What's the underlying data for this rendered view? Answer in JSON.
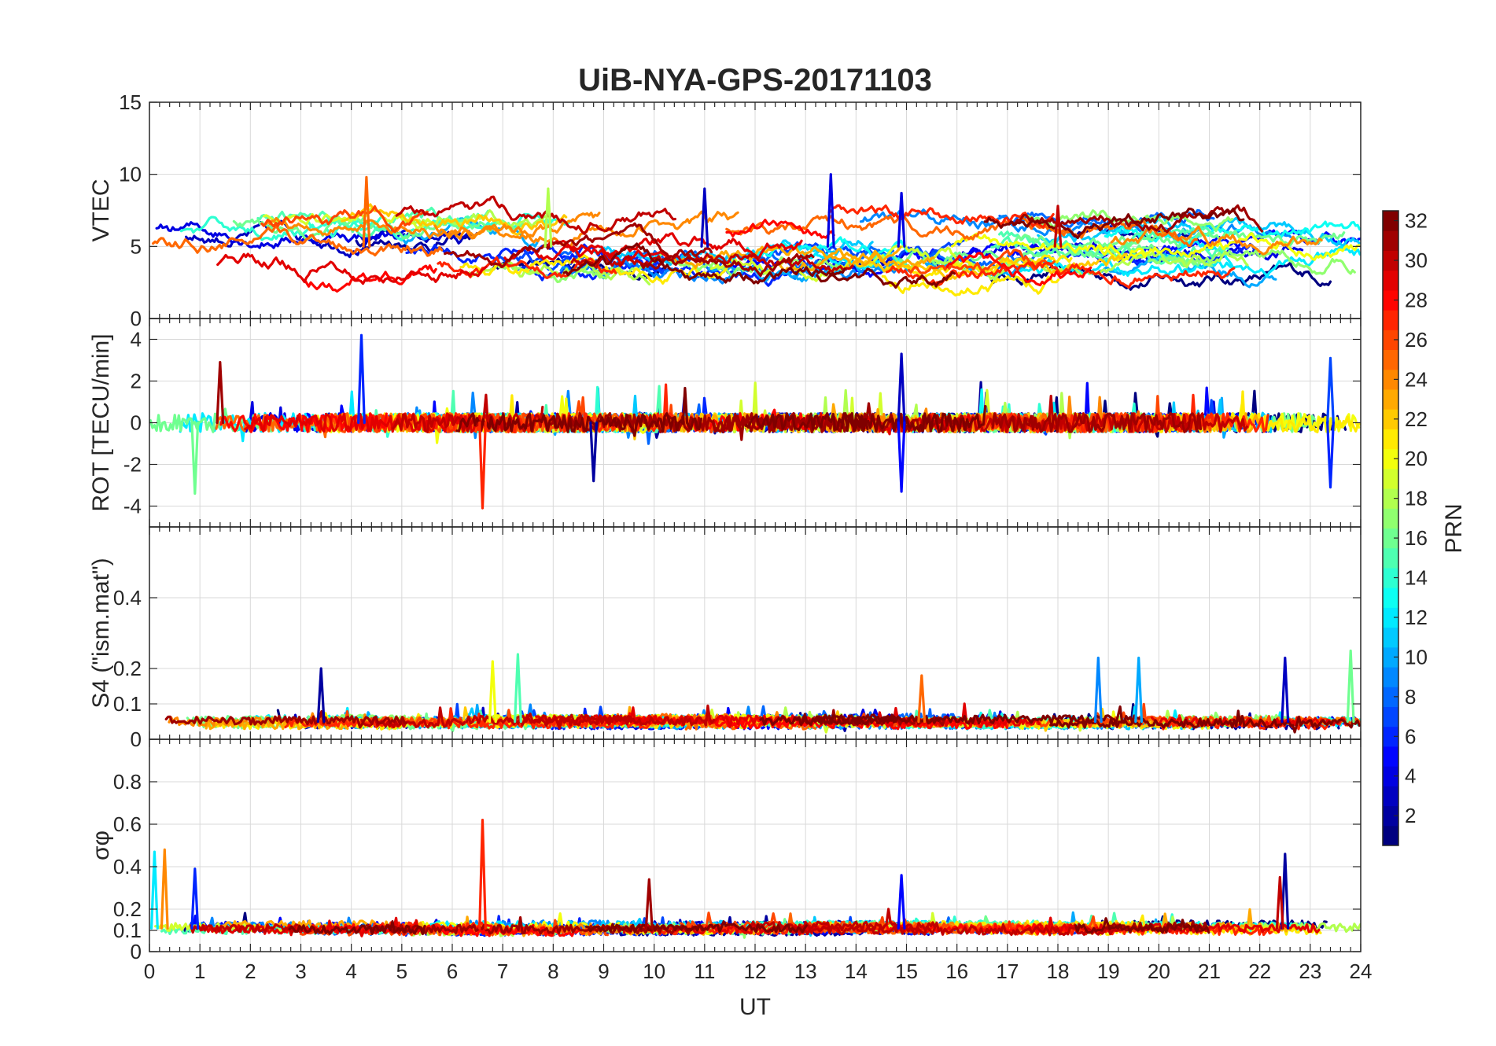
{
  "chart_data": {
    "type": "line",
    "title": "UiB-NYA-GPS-20171103",
    "xlabel": "UT",
    "xlim": [
      0,
      24
    ],
    "x_ticks": [
      "0",
      "1",
      "2",
      "3",
      "4",
      "5",
      "6",
      "7",
      "8",
      "9",
      "10",
      "11",
      "12",
      "13",
      "14",
      "15",
      "16",
      "17",
      "18",
      "19",
      "20",
      "21",
      "22",
      "23",
      "24"
    ],
    "colorbar": {
      "label": "PRN",
      "range": [
        1,
        32
      ],
      "ticks": [
        "2",
        "4",
        "6",
        "8",
        "10",
        "12",
        "14",
        "16",
        "18",
        "20",
        "22",
        "24",
        "26",
        "28",
        "30",
        "32"
      ],
      "colormap": "jet"
    },
    "panels": [
      {
        "ylabel": "VTEC",
        "ylim": [
          0,
          15
        ],
        "y_ticks": [
          0,
          5,
          10,
          15
        ],
        "y_tick_labels": [
          "0",
          "5",
          "10",
          "15"
        ],
        "baseline": 5,
        "spread": 1.1,
        "noise": 0.55,
        "spikes": [
          {
            "x": 4.3,
            "y": 9.8,
            "prn": 25
          },
          {
            "x": 7.9,
            "y": 9.0,
            "prn": 18
          },
          {
            "x": 11.0,
            "y": 9.0,
            "prn": 3
          },
          {
            "x": 13.5,
            "y": 10.0,
            "prn": 4
          },
          {
            "x": 14.9,
            "y": 8.7,
            "prn": 4
          },
          {
            "x": 18.0,
            "y": 7.8,
            "prn": 30
          }
        ]
      },
      {
        "ylabel": "ROT [TECU/min]",
        "ylim": [
          -5,
          5
        ],
        "y_ticks": [
          -4,
          -2,
          0,
          2,
          4
        ],
        "y_tick_labels": [
          "-4",
          "-2",
          "0",
          "2",
          "4"
        ],
        "baseline": 0,
        "spread": 0,
        "noise": 0.45,
        "spikes": [
          {
            "x": 4.2,
            "y": 4.2,
            "prn": 6
          },
          {
            "x": 6.6,
            "y": -4.1,
            "prn": 27
          },
          {
            "x": 8.8,
            "y": -2.8,
            "prn": 2
          },
          {
            "x": 14.9,
            "y": 3.3,
            "prn": 3
          },
          {
            "x": 14.9,
            "y": -3.3,
            "prn": 5
          },
          {
            "x": 23.4,
            "y": 3.1,
            "prn": 7
          },
          {
            "x": 23.4,
            "y": -3.1,
            "prn": 6
          },
          {
            "x": 0.9,
            "y": -3.4,
            "prn": 16
          },
          {
            "x": 1.4,
            "y": 2.9,
            "prn": 31
          }
        ]
      },
      {
        "ylabel": "S4 (\"ism.mat\")",
        "ylim": [
          0,
          0.6
        ],
        "y_ticks": [
          0,
          0.1,
          0.2,
          0.4
        ],
        "y_tick_labels": [
          "0",
          "0.1",
          "0.2",
          "0.4"
        ],
        "baseline": 0.05,
        "spread": 0.005,
        "noise": 0.012,
        "spikes": [
          {
            "x": 3.4,
            "y": 0.2,
            "prn": 2
          },
          {
            "x": 7.3,
            "y": 0.24,
            "prn": 15
          },
          {
            "x": 6.8,
            "y": 0.22,
            "prn": 20
          },
          {
            "x": 18.8,
            "y": 0.23,
            "prn": 9
          },
          {
            "x": 19.6,
            "y": 0.23,
            "prn": 10
          },
          {
            "x": 22.5,
            "y": 0.23,
            "prn": 3
          },
          {
            "x": 23.8,
            "y": 0.25,
            "prn": 16
          },
          {
            "x": 15.3,
            "y": 0.18,
            "prn": 25
          }
        ]
      },
      {
        "ylabel": "σφ",
        "ylim": [
          0,
          1
        ],
        "y_ticks": [
          0,
          0.1,
          0.2,
          0.4,
          0.6,
          0.8
        ],
        "y_tick_labels": [
          "0",
          "0.1",
          "0.2",
          "0.4",
          "0.6",
          "0.8"
        ],
        "baseline": 0.11,
        "spread": 0.008,
        "noise": 0.02,
        "spikes": [
          {
            "x": 6.6,
            "y": 0.62,
            "prn": 27
          },
          {
            "x": 0.3,
            "y": 0.48,
            "prn": 24
          },
          {
            "x": 0.1,
            "y": 0.47,
            "prn": 12
          },
          {
            "x": 0.9,
            "y": 0.39,
            "prn": 6
          },
          {
            "x": 22.5,
            "y": 0.46,
            "prn": 2
          },
          {
            "x": 22.4,
            "y": 0.35,
            "prn": 30
          },
          {
            "x": 14.9,
            "y": 0.36,
            "prn": 5
          },
          {
            "x": 9.9,
            "y": 0.34,
            "prn": 31
          }
        ]
      }
    ],
    "series_prns": [
      1,
      2,
      3,
      4,
      5,
      6,
      7,
      8,
      9,
      10,
      11,
      12,
      13,
      14,
      15,
      16,
      17,
      18,
      19,
      20,
      21,
      22,
      23,
      24,
      25,
      26,
      27,
      28,
      29,
      30,
      31,
      32
    ]
  }
}
